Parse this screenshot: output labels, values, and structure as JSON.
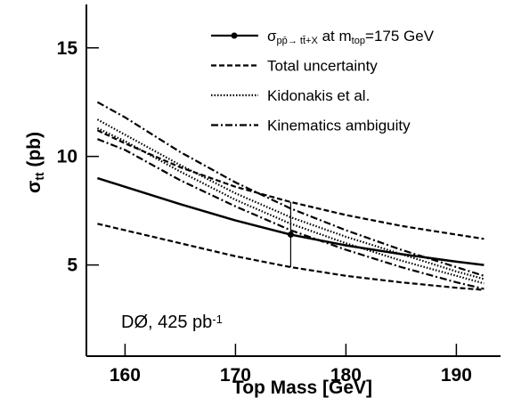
{
  "chart_data": {
    "type": "line",
    "x_label": "Top Mass [GeV]",
    "y_label_parts": [
      {
        "text": "σ"
      },
      {
        "text": "tt",
        "sub": true
      },
      {
        "text": " (pb)"
      }
    ],
    "xlim": [
      156.5,
      194
    ],
    "xticks": [
      160,
      170,
      180,
      190
    ],
    "ylim": [
      0.8,
      17
    ],
    "yticks": [
      5,
      10,
      15
    ],
    "x": [
      157.5,
      160,
      165,
      170,
      175,
      180,
      185,
      190,
      192.5
    ],
    "series": [
      {
        "legend_parts": [
          {
            "text": "σ"
          },
          {
            "text": "pp̄→ tt̄+X",
            "sub": true
          },
          {
            "text": " at m"
          },
          {
            "text": "top",
            "sub": true
          },
          {
            "text": "=175 GeV"
          }
        ],
        "dash": "solid",
        "color": "#000000",
        "lines": [
          [
            9.0,
            8.6,
            7.8,
            7.05,
            6.4,
            5.9,
            5.5,
            5.15,
            5.0
          ]
        ]
      },
      {
        "name": "Total uncertainty",
        "dash": "dashed",
        "color": "#000000",
        "lines": [
          [
            11.2,
            10.6,
            9.5,
            8.6,
            7.9,
            7.3,
            6.8,
            6.4,
            6.2
          ],
          [
            6.9,
            6.6,
            6.0,
            5.4,
            4.9,
            4.5,
            4.2,
            3.95,
            3.85
          ]
        ]
      },
      {
        "name": "Kidonakis et al.",
        "dash": "dotted",
        "color": "#000000",
        "lines": [
          [
            11.7,
            11.0,
            9.6,
            8.3,
            7.2,
            6.3,
            5.5,
            4.7,
            4.35
          ],
          [
            11.3,
            10.7,
            9.3,
            8.0,
            6.9,
            6.0,
            5.2,
            4.5,
            4.15
          ]
        ]
      },
      {
        "name": "Kinematics ambiguity",
        "dash": "dashdot",
        "color": "#000000",
        "lines": [
          [
            12.5,
            11.8,
            10.2,
            8.8,
            7.6,
            6.6,
            5.7,
            4.9,
            4.5
          ],
          [
            10.8,
            10.3,
            8.9,
            7.7,
            6.6,
            5.7,
            4.9,
            4.2,
            3.9
          ]
        ]
      }
    ],
    "point": {
      "x": 175,
      "y": 6.4,
      "error": 1.5
    },
    "annotation_parts": [
      {
        "text": "DØ, 425 pb"
      },
      {
        "text": "-1",
        "sup": true
      }
    ]
  }
}
